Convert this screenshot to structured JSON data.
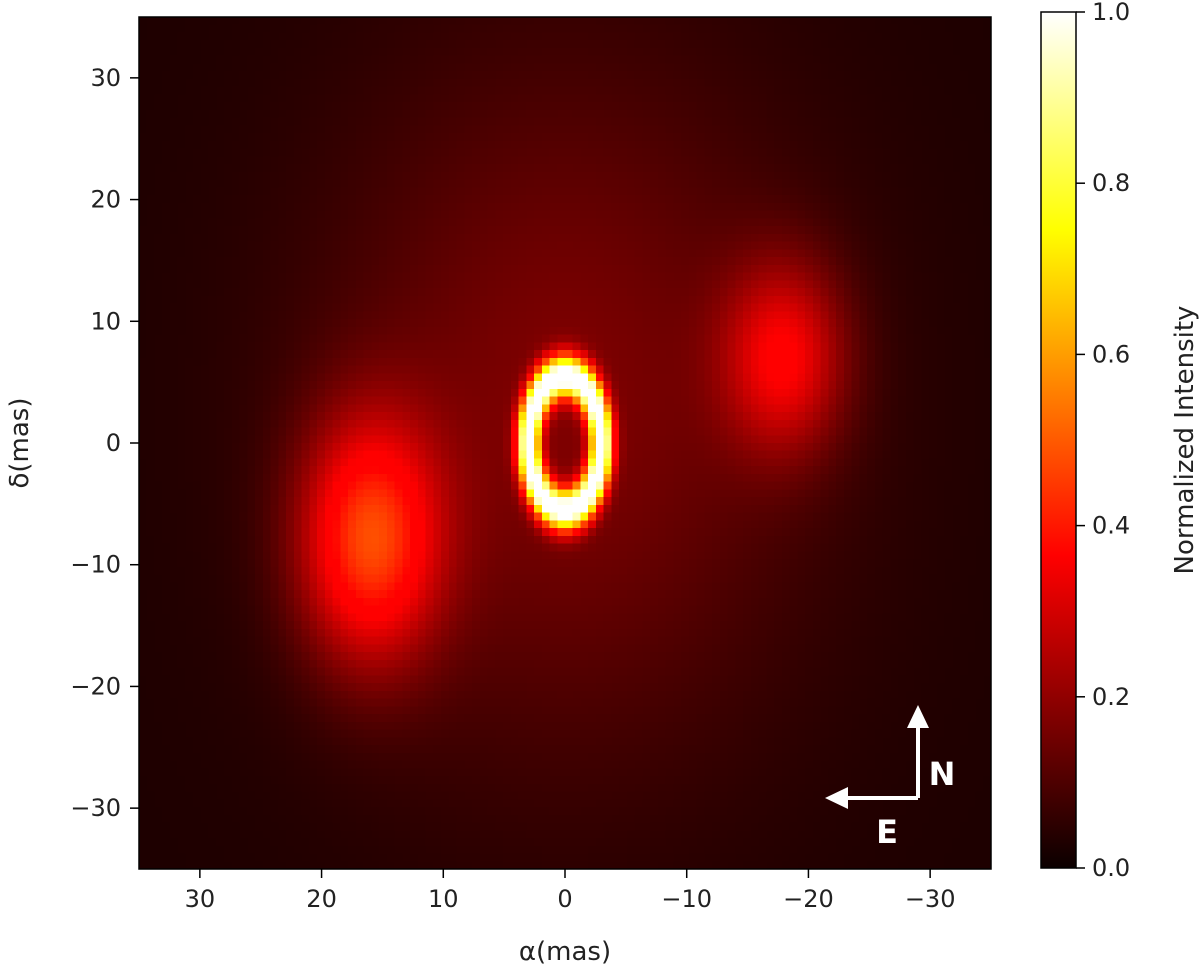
{
  "chart_data": {
    "type": "heatmap",
    "title": "",
    "xlabel": "α(mas)",
    "ylabel": "δ(mas)",
    "x_unit": "mas",
    "y_unit": "mas",
    "xlim": [
      35,
      -35
    ],
    "ylim": [
      -35,
      35
    ],
    "x_inverted": true,
    "x_ticks": [
      30,
      20,
      10,
      0,
      -10,
      -20,
      -30
    ],
    "x_tick_labels": [
      "30",
      "20",
      "10",
      "0",
      "−10",
      "−20",
      "−30"
    ],
    "y_ticks": [
      30,
      20,
      10,
      0,
      -10,
      -20,
      -30
    ],
    "y_tick_labels": [
      "30",
      "20",
      "10",
      "0",
      "−10",
      "−20",
      "−30"
    ],
    "colormap": "hot",
    "grid": false,
    "colorbar": {
      "label": "Normalized Intensity",
      "range": [
        0,
        1
      ],
      "ticks": [
        0,
        0.2,
        0.4,
        0.6,
        0.8,
        1.0
      ],
      "tick_labels": [
        "0.0",
        "0.2",
        "0.4",
        "0.6",
        "0.8",
        "1.0"
      ]
    },
    "components": [
      {
        "kind": "ring",
        "center": [
          0,
          0
        ],
        "radius_x": 3,
        "radius_y": 5.5,
        "peak_intensity": 1.0
      },
      {
        "kind": "blob",
        "center": [
          16,
          -8
        ],
        "sigma_x": 4,
        "sigma_y": 7,
        "peak_intensity": 0.42
      },
      {
        "kind": "blob",
        "center": [
          -18,
          7
        ],
        "sigma_x": 3.5,
        "sigma_y": 5.5,
        "peak_intensity": 0.28
      },
      {
        "kind": "halo",
        "center": [
          0,
          3
        ],
        "sigma_x": 14,
        "sigma_y": 20,
        "peak_intensity": 0.14
      }
    ],
    "compass": {
      "north_label": "N",
      "east_label": "E"
    }
  }
}
